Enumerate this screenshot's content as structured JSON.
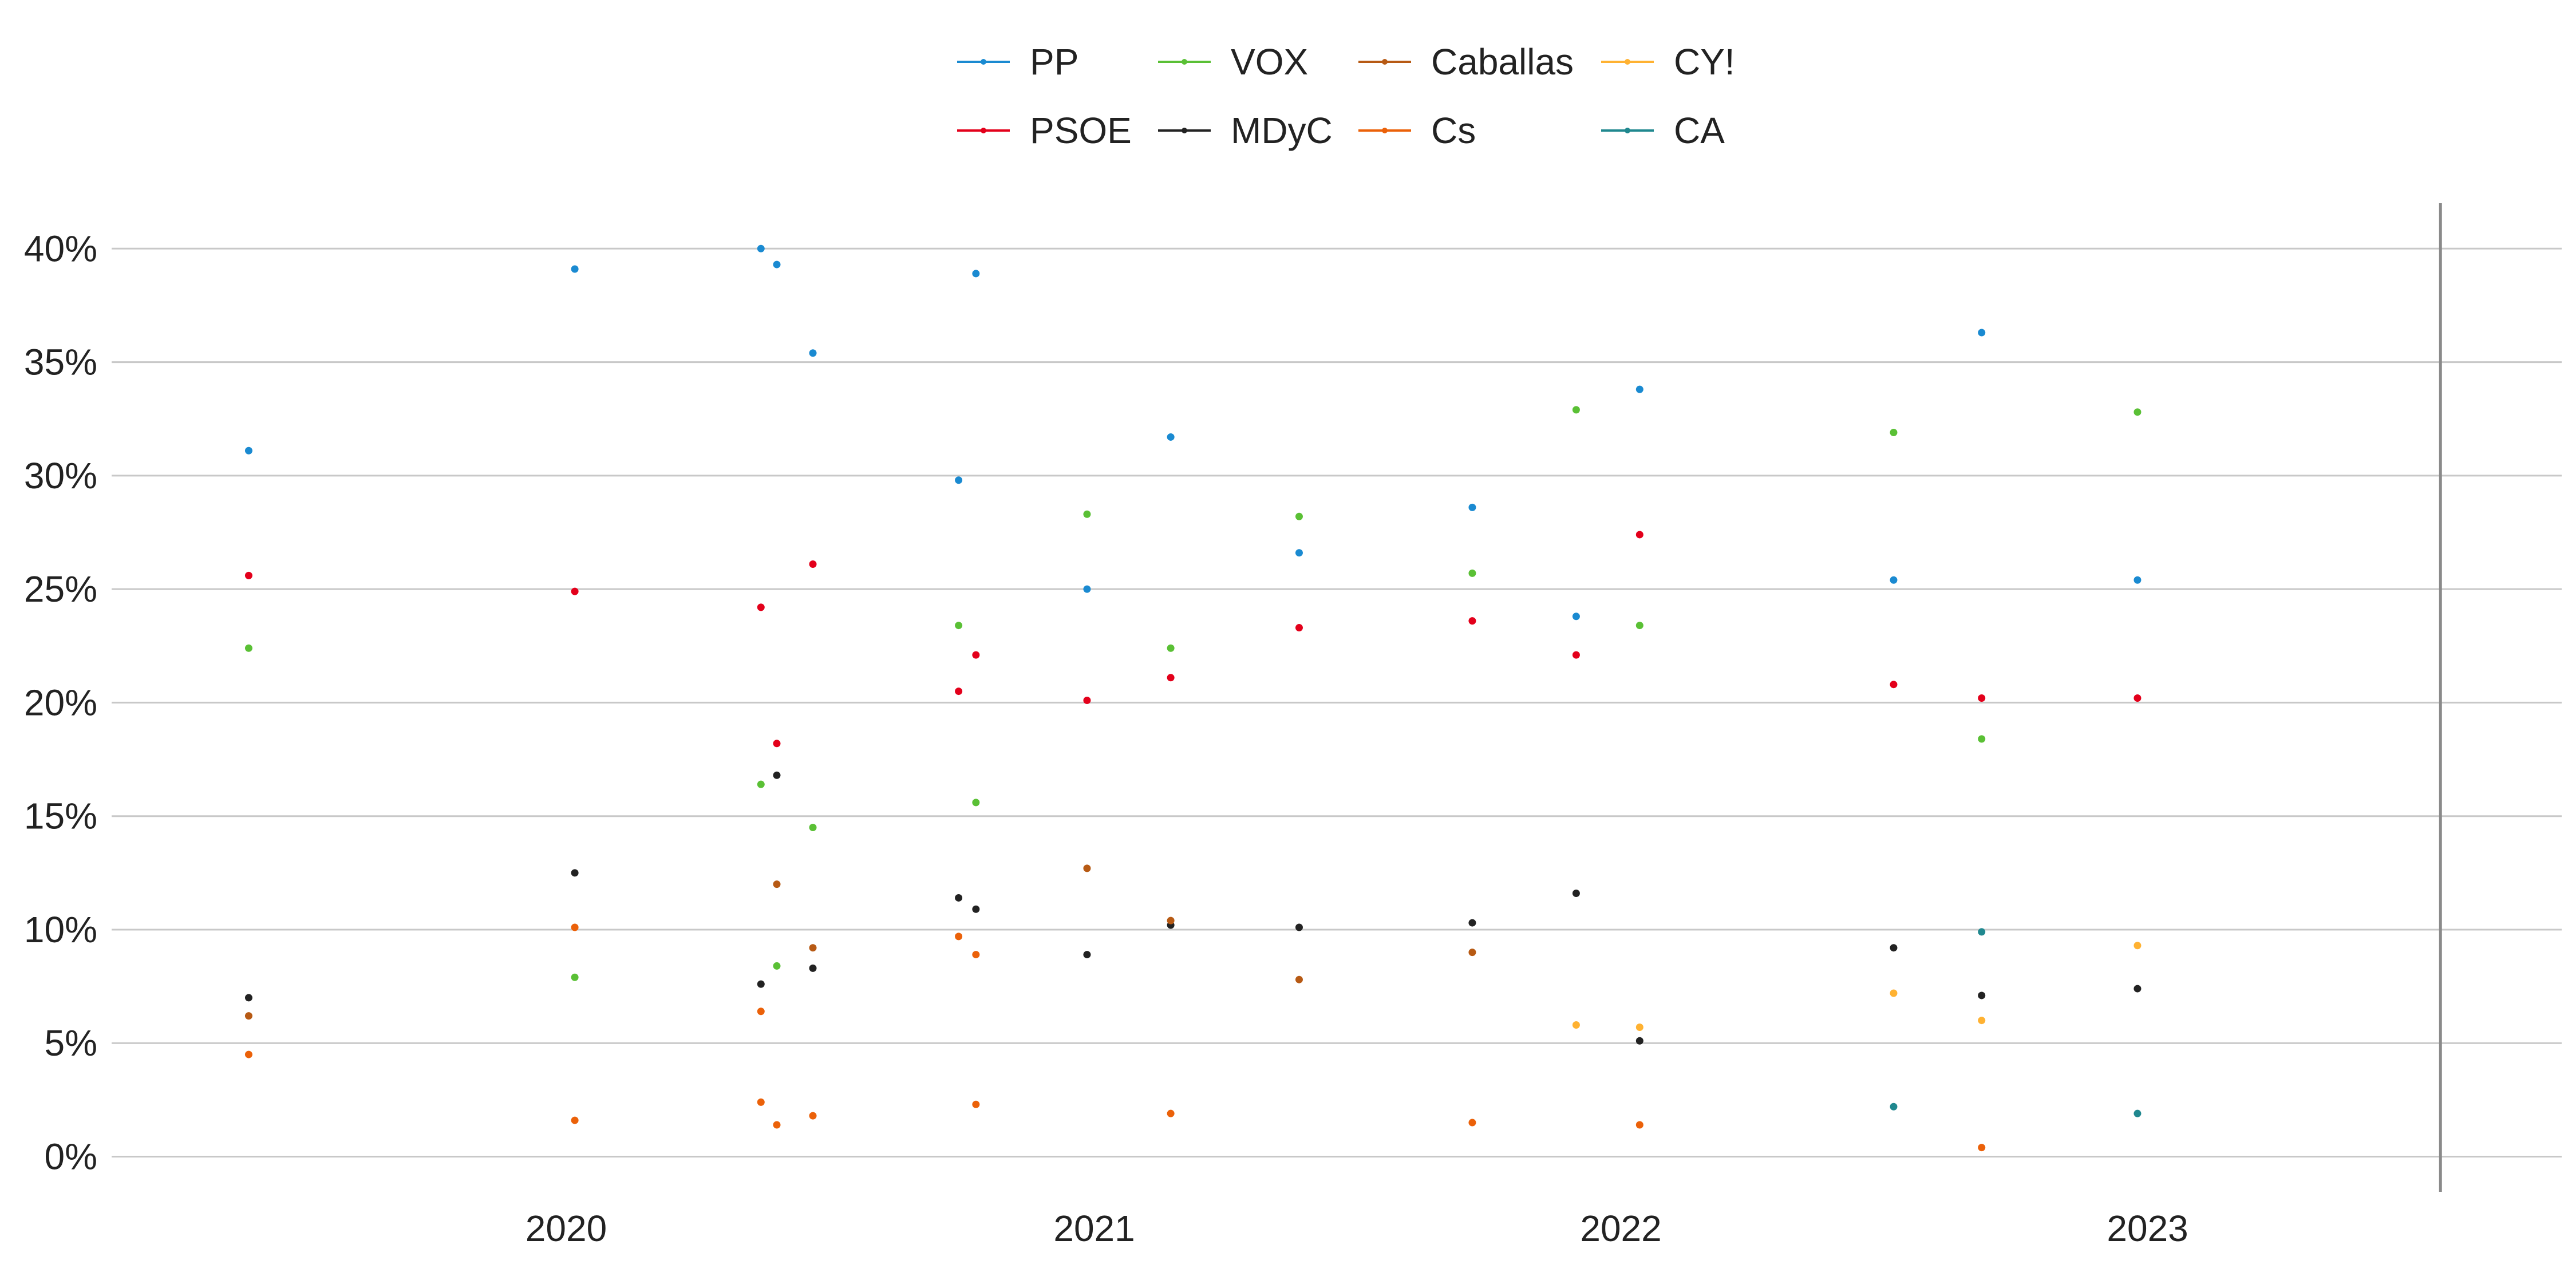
{
  "chart_data": {
    "type": "scatter",
    "x_axis": {
      "type": "date",
      "ticks": [
        "2020",
        "2021",
        "2022",
        "2023"
      ],
      "tick_dates": [
        "2020-01-01",
        "2021-01-01",
        "2022-01-01",
        "2023-01-01"
      ],
      "range": [
        "2019-02-20",
        "2023-10-15"
      ]
    },
    "y_axis": {
      "ticks": [
        "40%",
        "35%",
        "30%",
        "25%",
        "20%",
        "15%",
        "10%",
        "5%",
        "0%"
      ],
      "tick_values": [
        40,
        35,
        30,
        25,
        20,
        15,
        10,
        5,
        0
      ],
      "range": [
        -1.5,
        42
      ],
      "grid": true
    },
    "reference_line": "2023-07-23",
    "legend": {
      "placement": "top-center"
    },
    "series": [
      {
        "name": "PP",
        "color": "#1a8ad1",
        "points": [
          [
            "2019-05-26",
            31.1
          ],
          [
            "2020-01-07",
            39.1
          ],
          [
            "2020-05-15",
            40.0
          ],
          [
            "2020-05-26",
            39.3
          ],
          [
            "2020-06-20",
            35.4
          ],
          [
            "2020-09-29",
            29.8
          ],
          [
            "2020-10-11",
            38.9
          ],
          [
            "2020-12-27",
            25.0
          ],
          [
            "2021-02-23",
            31.7
          ],
          [
            "2021-05-23",
            26.6
          ],
          [
            "2021-09-20",
            28.6
          ],
          [
            "2021-12-01",
            23.8
          ],
          [
            "2022-01-14",
            33.8
          ],
          [
            "2022-07-09",
            25.4
          ],
          [
            "2022-09-08",
            36.3
          ],
          [
            "2022-12-25",
            25.4
          ]
        ]
      },
      {
        "name": "PSOE",
        "color": "#e3001b",
        "points": [
          [
            "2019-05-26",
            25.6
          ],
          [
            "2020-01-07",
            24.9
          ],
          [
            "2020-05-15",
            24.2
          ],
          [
            "2020-05-26",
            18.2
          ],
          [
            "2020-06-20",
            26.1
          ],
          [
            "2020-09-29",
            20.5
          ],
          [
            "2020-10-11",
            22.1
          ],
          [
            "2020-12-27",
            20.1
          ],
          [
            "2021-02-23",
            21.1
          ],
          [
            "2021-05-23",
            23.3
          ],
          [
            "2021-09-20",
            23.6
          ],
          [
            "2021-12-01",
            22.1
          ],
          [
            "2022-01-14",
            27.4
          ],
          [
            "2022-07-09",
            20.8
          ],
          [
            "2022-09-08",
            20.2
          ],
          [
            "2022-12-25",
            20.2
          ]
        ]
      },
      {
        "name": "VOX",
        "color": "#5ac035",
        "points": [
          [
            "2019-05-26",
            22.4
          ],
          [
            "2020-01-07",
            7.9
          ],
          [
            "2020-05-15",
            16.4
          ],
          [
            "2020-05-26",
            8.4
          ],
          [
            "2020-06-20",
            14.5
          ],
          [
            "2020-09-29",
            23.4
          ],
          [
            "2020-10-11",
            15.6
          ],
          [
            "2020-12-27",
            28.3
          ],
          [
            "2021-02-23",
            22.4
          ],
          [
            "2021-05-23",
            28.2
          ],
          [
            "2021-09-20",
            25.7
          ],
          [
            "2021-12-01",
            32.9
          ],
          [
            "2022-01-14",
            23.4
          ],
          [
            "2022-07-09",
            31.9
          ],
          [
            "2022-09-08",
            18.4
          ],
          [
            "2022-12-25",
            32.8
          ]
        ]
      },
      {
        "name": "MDyC",
        "color": "#222222",
        "points": [
          [
            "2019-05-26",
            7.0
          ],
          [
            "2020-01-07",
            12.5
          ],
          [
            "2020-05-15",
            7.6
          ],
          [
            "2020-05-26",
            16.8
          ],
          [
            "2020-06-20",
            8.3
          ],
          [
            "2020-09-29",
            11.4
          ],
          [
            "2020-10-11",
            10.9
          ],
          [
            "2020-12-27",
            8.9
          ],
          [
            "2021-02-23",
            10.2
          ],
          [
            "2021-05-23",
            10.1
          ],
          [
            "2021-09-20",
            10.3
          ],
          [
            "2021-12-01",
            11.6
          ],
          [
            "2022-01-14",
            5.1
          ],
          [
            "2022-07-09",
            9.2
          ],
          [
            "2022-09-08",
            7.1
          ],
          [
            "2022-12-25",
            7.4
          ]
        ]
      },
      {
        "name": "Caballas",
        "color": "#b75a14",
        "points": [
          [
            "2019-05-26",
            6.2
          ],
          [
            "2020-05-26",
            12.0
          ],
          [
            "2020-06-20",
            9.2
          ],
          [
            "2020-12-27",
            12.7
          ],
          [
            "2021-02-23",
            10.4
          ],
          [
            "2021-05-23",
            7.8
          ],
          [
            "2021-09-20",
            9.0
          ]
        ]
      },
      {
        "name": "Cs",
        "color": "#eb6109",
        "points": [
          [
            "2019-05-26",
            4.5
          ],
          [
            "2020-01-07",
            10.1
          ],
          [
            "2020-01-07",
            1.6
          ],
          [
            "2020-05-15",
            6.4
          ],
          [
            "2020-05-15",
            2.4
          ],
          [
            "2020-05-26",
            1.4
          ],
          [
            "2020-06-20",
            1.8
          ],
          [
            "2020-09-29",
            9.7
          ],
          [
            "2020-10-11",
            8.9
          ],
          [
            "2020-10-11",
            2.3
          ],
          [
            "2021-02-23",
            1.9
          ],
          [
            "2021-09-20",
            1.5
          ],
          [
            "2022-01-14",
            1.4
          ],
          [
            "2022-09-08",
            0.4
          ]
        ]
      },
      {
        "name": "CY!",
        "color": "#ffb232",
        "points": [
          [
            "2021-12-01",
            5.8
          ],
          [
            "2022-01-14",
            5.7
          ],
          [
            "2022-07-09",
            7.2
          ],
          [
            "2022-09-08",
            6.0
          ],
          [
            "2022-12-25",
            9.3
          ]
        ]
      },
      {
        "name": "CA",
        "color": "#20888f",
        "points": [
          [
            "2022-07-09",
            2.2
          ],
          [
            "2022-09-08",
            9.9
          ],
          [
            "2022-12-25",
            1.9
          ]
        ]
      }
    ]
  }
}
